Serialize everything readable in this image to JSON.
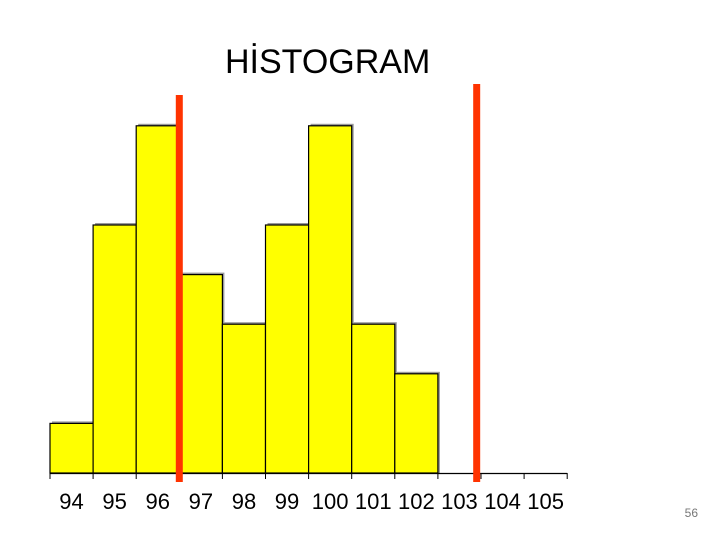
{
  "slide": {
    "title": "HİSTOGRAM",
    "page_number": "56"
  },
  "chart_data": {
    "type": "bar",
    "title": "HİSTOGRAM",
    "xlabel": "",
    "ylabel": "",
    "categories": [
      "94",
      "95",
      "96",
      "97",
      "98",
      "99",
      "100",
      "101",
      "102",
      "103",
      "104",
      "105"
    ],
    "values": [
      1,
      5,
      7,
      4,
      3,
      5,
      7,
      3,
      2,
      0,
      0,
      0
    ],
    "ylim": [
      0,
      7
    ],
    "specification_limits": [
      96.5,
      103.4
    ],
    "grid": false,
    "legend": "none",
    "colors": {
      "bar_fill": "#ffff00",
      "bar_stroke": "#000000",
      "limit_line": "#ff3300"
    }
  }
}
